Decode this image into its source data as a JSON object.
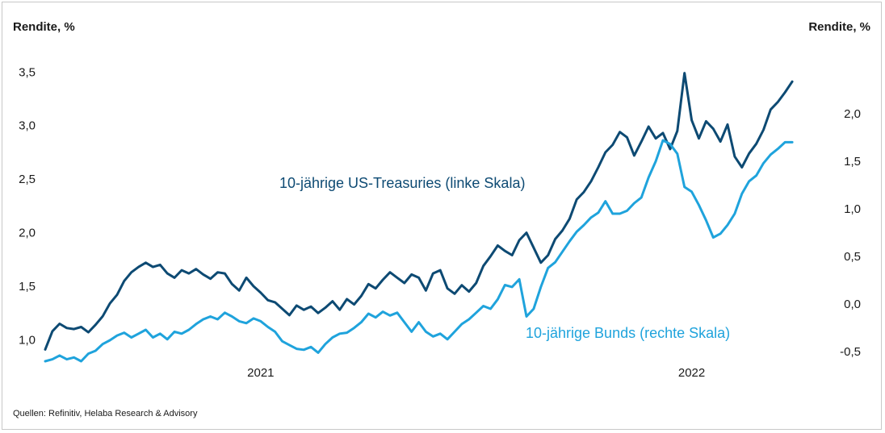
{
  "chart_data": {
    "type": "line",
    "title": "",
    "source_note": "Quellen: Refinitiv, Helaba Research & Advisory",
    "left_axis": {
      "label": "Rendite, %",
      "ylim": [
        0.8,
        3.6
      ],
      "ticks": [
        "1,0",
        "1,5",
        "2,0",
        "2,5",
        "3,0",
        "3,5"
      ],
      "tick_values": [
        1.0,
        1.5,
        2.0,
        2.5,
        3.0,
        3.5
      ]
    },
    "right_axis": {
      "label": "Rendite, %",
      "ylim": [
        -0.6,
        2.55
      ],
      "ticks": [
        "-0,5",
        "0,0",
        "0,5",
        "1,0",
        "1,5",
        "2,0"
      ],
      "tick_values": [
        -0.5,
        0.0,
        0.5,
        1.0,
        1.5,
        2.0
      ]
    },
    "x_axis": {
      "range_months": [
        0,
        21
      ],
      "ticks": [
        "2021",
        "2022"
      ],
      "tick_months": [
        6,
        18
      ]
    },
    "colors": {
      "us": "#0d4a73",
      "bund": "#1fa3dc"
    },
    "series": [
      {
        "name": "10-jährige US-Treasuries (linke Skala)",
        "axis": "left",
        "x": [
          0.0,
          0.2,
          0.4,
          0.6,
          0.8,
          1.0,
          1.2,
          1.4,
          1.6,
          1.8,
          2.0,
          2.2,
          2.4,
          2.6,
          2.8,
          3.0,
          3.2,
          3.4,
          3.6,
          3.8,
          4.0,
          4.2,
          4.4,
          4.6,
          4.8,
          5.0,
          5.2,
          5.4,
          5.6,
          5.8,
          6.0,
          6.2,
          6.4,
          6.6,
          6.8,
          7.0,
          7.2,
          7.4,
          7.6,
          7.8,
          8.0,
          8.2,
          8.4,
          8.6,
          8.8,
          9.0,
          9.2,
          9.4,
          9.6,
          9.8,
          10.0,
          10.2,
          10.4,
          10.6,
          10.8,
          11.0,
          11.2,
          11.4,
          11.6,
          11.8,
          12.0,
          12.2,
          12.4,
          12.6,
          12.8,
          13.0,
          13.2,
          13.4,
          13.6,
          13.8,
          14.0,
          14.2,
          14.4,
          14.6,
          14.8,
          15.0,
          15.2,
          15.4,
          15.6,
          15.8,
          16.0,
          16.2,
          16.4,
          16.6,
          16.8,
          17.0,
          17.2,
          17.4,
          17.6,
          17.8,
          18.0,
          18.2,
          18.4,
          18.6,
          18.8,
          19.0,
          19.2,
          19.4,
          19.6,
          19.8,
          20.0,
          20.2,
          20.4,
          20.6,
          20.8
        ],
        "values": [
          0.91,
          1.08,
          1.15,
          1.11,
          1.1,
          1.12,
          1.07,
          1.14,
          1.22,
          1.34,
          1.42,
          1.55,
          1.63,
          1.68,
          1.72,
          1.68,
          1.7,
          1.62,
          1.58,
          1.65,
          1.62,
          1.66,
          1.61,
          1.57,
          1.63,
          1.62,
          1.52,
          1.46,
          1.58,
          1.5,
          1.44,
          1.37,
          1.35,
          1.29,
          1.23,
          1.32,
          1.28,
          1.31,
          1.25,
          1.3,
          1.36,
          1.28,
          1.38,
          1.33,
          1.41,
          1.52,
          1.48,
          1.56,
          1.63,
          1.58,
          1.53,
          1.61,
          1.58,
          1.46,
          1.62,
          1.65,
          1.48,
          1.43,
          1.51,
          1.45,
          1.53,
          1.69,
          1.78,
          1.88,
          1.83,
          1.79,
          1.93,
          2.0,
          1.86,
          1.72,
          1.79,
          1.94,
          2.02,
          2.13,
          2.31,
          2.38,
          2.48,
          2.61,
          2.75,
          2.82,
          2.94,
          2.89,
          2.72,
          2.85,
          2.99,
          2.88,
          2.93,
          2.78,
          2.95,
          3.49,
          3.05,
          2.88,
          3.04,
          2.97,
          2.85,
          3.01,
          2.71,
          2.61,
          2.74,
          2.83,
          2.96,
          3.15,
          3.22,
          3.31,
          3.41
        ]
      },
      {
        "name": "10-jährige Bunds (rechte Skala)",
        "axis": "right",
        "x": [
          0.0,
          0.2,
          0.4,
          0.6,
          0.8,
          1.0,
          1.2,
          1.4,
          1.6,
          1.8,
          2.0,
          2.2,
          2.4,
          2.6,
          2.8,
          3.0,
          3.2,
          3.4,
          3.6,
          3.8,
          4.0,
          4.2,
          4.4,
          4.6,
          4.8,
          5.0,
          5.2,
          5.4,
          5.6,
          5.8,
          6.0,
          6.2,
          6.4,
          6.6,
          6.8,
          7.0,
          7.2,
          7.4,
          7.6,
          7.8,
          8.0,
          8.2,
          8.4,
          8.6,
          8.8,
          9.0,
          9.2,
          9.4,
          9.6,
          9.8,
          10.0,
          10.2,
          10.4,
          10.6,
          10.8,
          11.0,
          11.2,
          11.4,
          11.6,
          11.8,
          12.0,
          12.2,
          12.4,
          12.6,
          12.8,
          13.0,
          13.2,
          13.4,
          13.6,
          13.8,
          14.0,
          14.2,
          14.4,
          14.6,
          14.8,
          15.0,
          15.2,
          15.4,
          15.6,
          15.8,
          16.0,
          16.2,
          16.4,
          16.6,
          16.8,
          17.0,
          17.2,
          17.4,
          17.6,
          17.8,
          18.0,
          18.2,
          18.4,
          18.6,
          18.8,
          19.0,
          19.2,
          19.4,
          19.6,
          19.8,
          20.0,
          20.2,
          20.4,
          20.6,
          20.8
        ],
        "values": [
          -0.6,
          -0.58,
          -0.54,
          -0.58,
          -0.56,
          -0.6,
          -0.52,
          -0.49,
          -0.42,
          -0.38,
          -0.33,
          -0.3,
          -0.35,
          -0.31,
          -0.27,
          -0.35,
          -0.31,
          -0.37,
          -0.29,
          -0.31,
          -0.27,
          -0.21,
          -0.16,
          -0.13,
          -0.16,
          -0.09,
          -0.13,
          -0.18,
          -0.2,
          -0.15,
          -0.18,
          -0.24,
          -0.29,
          -0.39,
          -0.43,
          -0.47,
          -0.48,
          -0.45,
          -0.51,
          -0.42,
          -0.35,
          -0.31,
          -0.3,
          -0.25,
          -0.19,
          -0.1,
          -0.14,
          -0.08,
          -0.12,
          -0.09,
          -0.19,
          -0.29,
          -0.19,
          -0.29,
          -0.34,
          -0.31,
          -0.37,
          -0.29,
          -0.21,
          -0.16,
          -0.09,
          -0.02,
          -0.05,
          0.05,
          0.2,
          0.18,
          0.26,
          -0.13,
          -0.05,
          0.18,
          0.38,
          0.44,
          0.55,
          0.66,
          0.76,
          0.83,
          0.91,
          0.96,
          1.08,
          0.95,
          0.95,
          0.98,
          1.06,
          1.12,
          1.33,
          1.5,
          1.72,
          1.68,
          1.58,
          1.23,
          1.18,
          1.04,
          0.88,
          0.7,
          0.74,
          0.83,
          0.95,
          1.16,
          1.29,
          1.35,
          1.48,
          1.57,
          1.63,
          1.7,
          1.7
        ]
      }
    ],
    "annotations": [
      {
        "text": "10-jährige US-Treasuries (linke Skala)",
        "series": 0
      },
      {
        "text": "10-jährige Bunds (rechte Skala)",
        "series": 1
      }
    ]
  }
}
